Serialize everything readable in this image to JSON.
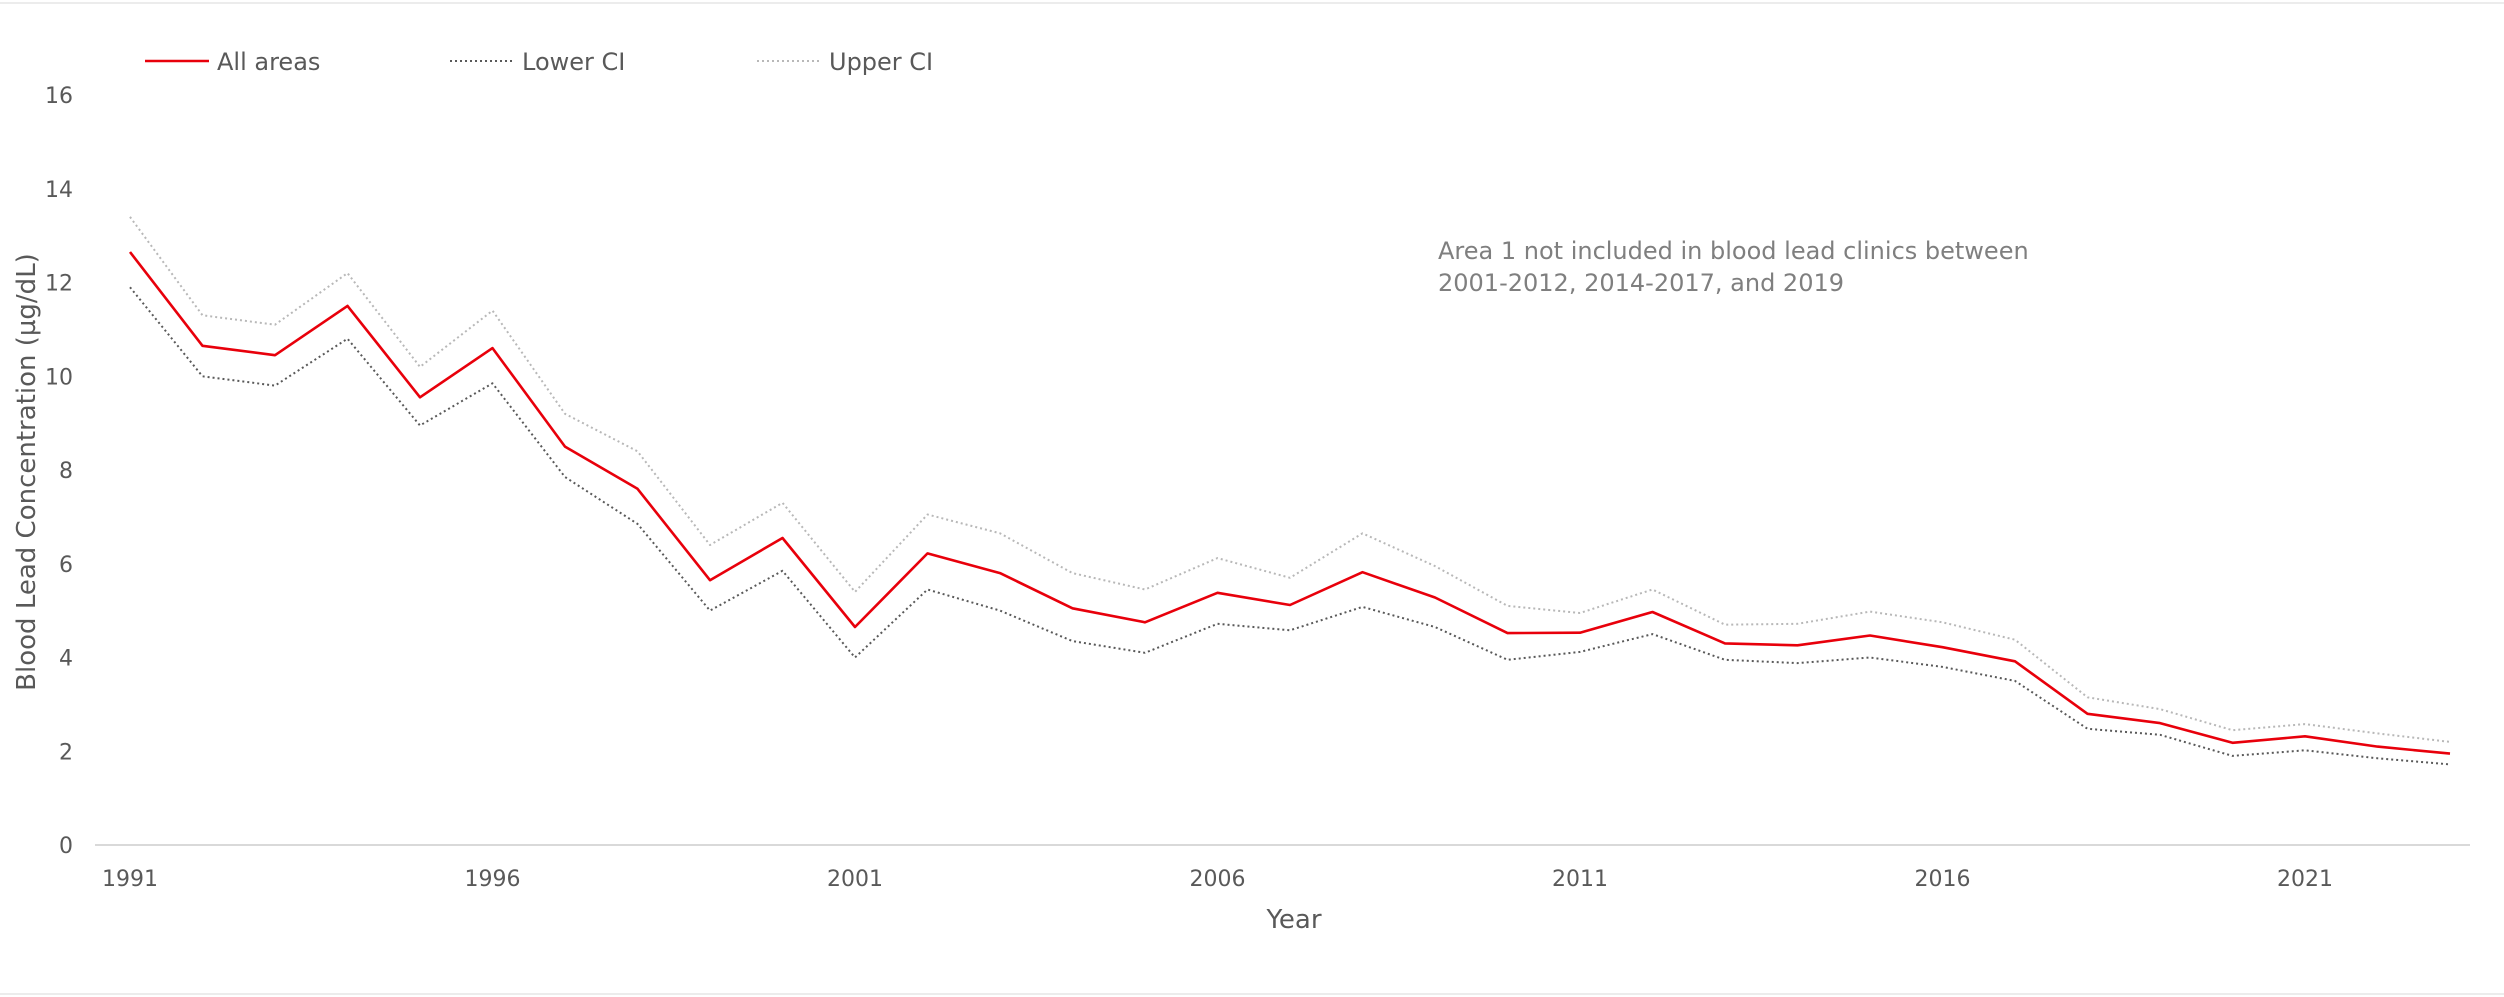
{
  "chart_data": {
    "type": "line",
    "title": "",
    "xlabel": "Year",
    "ylabel": "Blood Lead Concentration (µg/dL)",
    "x": [
      1991,
      1992,
      1993,
      1994,
      1995,
      1996,
      1997,
      1998,
      1999,
      2000,
      2001,
      2002,
      2003,
      2004,
      2005,
      2006,
      2007,
      2008,
      2009,
      2010,
      2011,
      2012,
      2013,
      2014,
      2015,
      2016,
      2017,
      2018,
      2019,
      2020,
      2021,
      2022,
      2023
    ],
    "x_ticks": [
      "1991",
      "1996",
      "2001",
      "2006",
      "2011",
      "2016",
      "2021"
    ],
    "x_tick_values": [
      1991,
      1996,
      2001,
      2006,
      2011,
      2016,
      2021
    ],
    "xlim": [
      1991,
      2023
    ],
    "ylim": [
      0,
      16
    ],
    "y_ticks": [
      0,
      2,
      4,
      6,
      8,
      10,
      12,
      14,
      16
    ],
    "grid": false,
    "legend_position": "top-left",
    "series": [
      {
        "name": "All areas",
        "color": "#e8000b",
        "style": "solid",
        "values": [
          12.65,
          10.65,
          10.45,
          11.5,
          9.55,
          10.6,
          8.5,
          7.6,
          5.65,
          6.55,
          4.65,
          6.22,
          5.8,
          5.05,
          4.75,
          5.38,
          5.12,
          5.82,
          5.28,
          4.52,
          4.53,
          4.97,
          4.3,
          4.26,
          4.47,
          4.22,
          3.92,
          2.8,
          2.6,
          2.18,
          2.32,
          2.1,
          1.95
        ]
      },
      {
        "name": "Lower CI",
        "color": "#595959",
        "style": "dotted",
        "values": [
          11.9,
          10.0,
          9.8,
          10.8,
          8.95,
          9.85,
          7.85,
          6.85,
          5.0,
          5.85,
          4.0,
          5.45,
          5.0,
          4.35,
          4.1,
          4.72,
          4.58,
          5.08,
          4.65,
          3.95,
          4.12,
          4.5,
          3.95,
          3.88,
          4.0,
          3.8,
          3.5,
          2.48,
          2.35,
          1.9,
          2.02,
          1.85,
          1.72
        ]
      },
      {
        "name": "Upper CI",
        "color": "#b8b8b8",
        "style": "dotted",
        "values": [
          13.4,
          11.3,
          11.1,
          12.2,
          10.2,
          11.4,
          9.2,
          8.4,
          6.4,
          7.3,
          5.4,
          7.05,
          6.65,
          5.8,
          5.45,
          6.12,
          5.7,
          6.65,
          5.95,
          5.1,
          4.95,
          5.45,
          4.7,
          4.72,
          4.98,
          4.75,
          4.38,
          3.15,
          2.9,
          2.45,
          2.58,
          2.38,
          2.2
        ]
      }
    ],
    "annotation": {
      "line1": "Area 1 not included in blood lead clinics between",
      "line2": "2001-2012, 2014-2017, and 2019"
    }
  }
}
